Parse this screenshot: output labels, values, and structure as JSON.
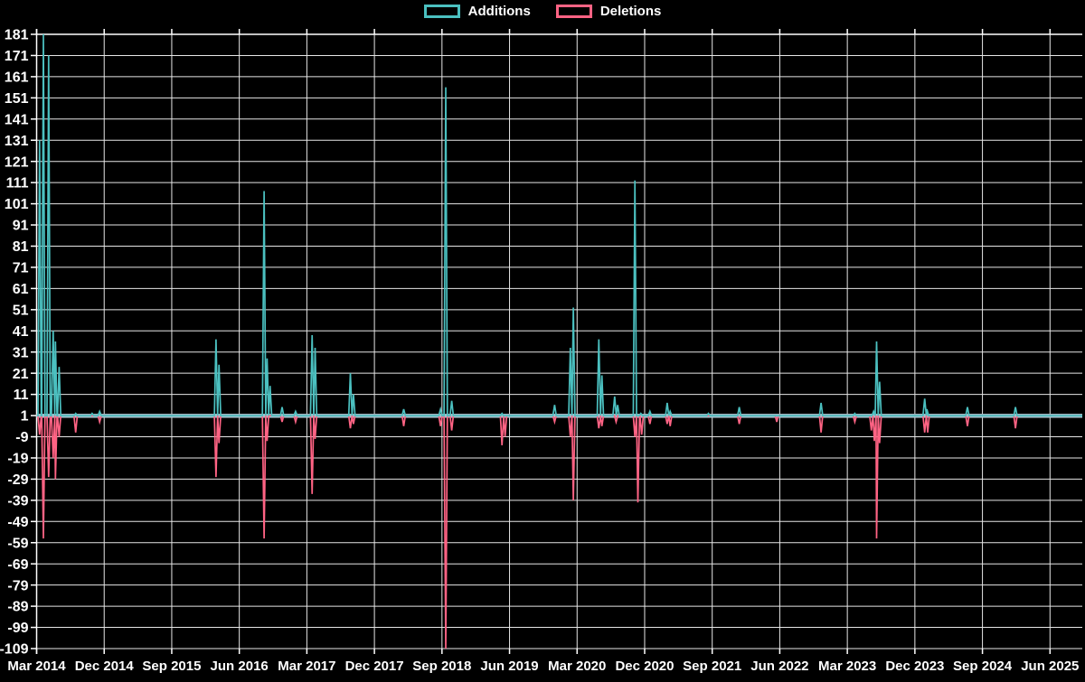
{
  "legend": {
    "items": [
      {
        "label": "Additions",
        "color": "#4bc0c0"
      },
      {
        "label": "Deletions",
        "color": "#ff6384"
      }
    ]
  },
  "colors": {
    "background": "#000000",
    "grid": "#e6e6e6",
    "axis": "#ffffff",
    "text": "#ffffff",
    "additions": "#4bc0c0",
    "deletions": "#ff6384",
    "baseline_band": "#a6c1cd"
  },
  "chart_data": {
    "type": "line",
    "title": "",
    "xlabel": "",
    "ylabel": "",
    "legend_position": "top-center",
    "grid": true,
    "baseline": 1,
    "ylim": [
      -109,
      181
    ],
    "y_ticks": [
      181,
      171,
      161,
      151,
      141,
      131,
      121,
      111,
      101,
      91,
      81,
      71,
      61,
      51,
      41,
      31,
      21,
      11,
      1,
      -9,
      -19,
      -29,
      -39,
      -49,
      -59,
      -69,
      -79,
      -89,
      -99,
      -109
    ],
    "x_tick_labels": [
      "Mar 2014",
      "Dec 2014",
      "Sep 2015",
      "Jun 2016",
      "Mar 2017",
      "Dec 2017",
      "Sep 2018",
      "Jun 2019",
      "Mar 2020",
      "Dec 2020",
      "Sep 2021",
      "Jun 2022",
      "Mar 2023",
      "Dec 2023",
      "Sep 2024",
      "Jun 2025"
    ],
    "months_per_tick": 9,
    "x_domain_months": [
      0,
      139.3
    ],
    "spike_half_width_months": 0.22,
    "series": [
      {
        "name": "Deletions",
        "color": "#ff6384",
        "events": [
          [
            0.4,
            -8
          ],
          [
            0.9,
            -57
          ],
          [
            1.6,
            -28
          ],
          [
            2.2,
            -19
          ],
          [
            2.5,
            -29
          ],
          [
            3.0,
            -9
          ],
          [
            5.2,
            -7
          ],
          [
            8.4,
            -2
          ],
          [
            23.9,
            -28
          ],
          [
            24.3,
            -12
          ],
          [
            30.3,
            -57
          ],
          [
            30.7,
            -11
          ],
          [
            32.7,
            -2
          ],
          [
            34.5,
            -2
          ],
          [
            36.7,
            -36
          ],
          [
            37.1,
            -10
          ],
          [
            41.8,
            -5
          ],
          [
            42.2,
            -3
          ],
          [
            48.9,
            -4
          ],
          [
            53.8,
            -4
          ],
          [
            54.5,
            -109
          ],
          [
            55.3,
            -6
          ],
          [
            62.0,
            -13
          ],
          [
            62.4,
            -9
          ],
          [
            69.0,
            -2
          ],
          [
            71.1,
            -9
          ],
          [
            71.5,
            -39
          ],
          [
            74.9,
            -5
          ],
          [
            75.3,
            -4
          ],
          [
            77.2,
            -2
          ],
          [
            79.7,
            -9
          ],
          [
            80.1,
            -40
          ],
          [
            80.6,
            -8
          ],
          [
            81.7,
            -3
          ],
          [
            84.0,
            -3
          ],
          [
            84.4,
            -4
          ],
          [
            93.6,
            -3
          ],
          [
            98.6,
            -2
          ],
          [
            104.5,
            -7
          ],
          [
            109.0,
            -2
          ],
          [
            111.2,
            -6
          ],
          [
            111.6,
            -11
          ],
          [
            111.9,
            -57
          ],
          [
            112.3,
            -12
          ],
          [
            118.3,
            -7
          ],
          [
            118.7,
            -7
          ],
          [
            124.0,
            -4
          ],
          [
            130.4,
            -5
          ]
        ]
      },
      {
        "name": "Additions",
        "color": "#4bc0c0",
        "events": [
          [
            0.4,
            131
          ],
          [
            0.9,
            181
          ],
          [
            1.6,
            171
          ],
          [
            2.2,
            41
          ],
          [
            2.5,
            36
          ],
          [
            3.0,
            24
          ],
          [
            5.2,
            2
          ],
          [
            7.4,
            2
          ],
          [
            8.4,
            3
          ],
          [
            23.9,
            37
          ],
          [
            24.3,
            25
          ],
          [
            30.3,
            107
          ],
          [
            30.7,
            28
          ],
          [
            31.1,
            15
          ],
          [
            32.7,
            5
          ],
          [
            34.5,
            3
          ],
          [
            36.7,
            39
          ],
          [
            37.1,
            33
          ],
          [
            41.8,
            21
          ],
          [
            42.2,
            11
          ],
          [
            48.9,
            4
          ],
          [
            53.8,
            4
          ],
          [
            54.5,
            156
          ],
          [
            55.3,
            8
          ],
          [
            62.0,
            2
          ],
          [
            69.0,
            6
          ],
          [
            71.1,
            33
          ],
          [
            71.5,
            52
          ],
          [
            74.9,
            37
          ],
          [
            75.3,
            20
          ],
          [
            77.0,
            10
          ],
          [
            77.4,
            6
          ],
          [
            79.7,
            112
          ],
          [
            80.5,
            2
          ],
          [
            81.7,
            3
          ],
          [
            84.0,
            7
          ],
          [
            84.4,
            3
          ],
          [
            89.5,
            2
          ],
          [
            93.6,
            5
          ],
          [
            104.5,
            7
          ],
          [
            109.0,
            2
          ],
          [
            111.5,
            3
          ],
          [
            111.9,
            36
          ],
          [
            112.3,
            17
          ],
          [
            118.3,
            9
          ],
          [
            118.6,
            4
          ],
          [
            124.0,
            5
          ],
          [
            130.4,
            5
          ]
        ]
      }
    ]
  }
}
